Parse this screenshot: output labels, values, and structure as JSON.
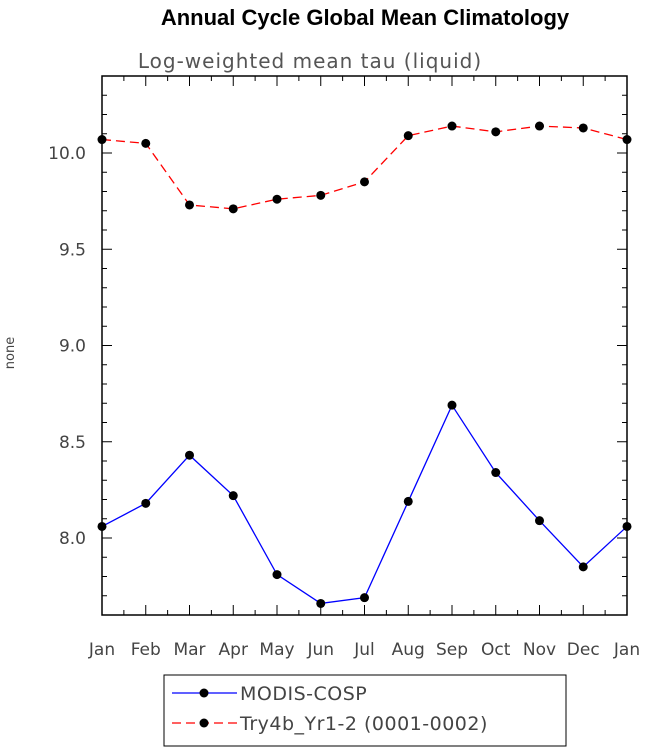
{
  "chart_data": {
    "type": "line",
    "title": "Annual Cycle Global Mean Climatology",
    "subtitle": "Log-weighted mean tau (liquid)",
    "xlabel": "",
    "ylabel": "none",
    "categories": [
      "Jan",
      "Feb",
      "Mar",
      "Apr",
      "May",
      "Jun",
      "Jul",
      "Aug",
      "Sep",
      "Oct",
      "Nov",
      "Dec",
      "Jan"
    ],
    "yticks": [
      "8.0",
      "8.5",
      "9.0",
      "9.5",
      "10.0"
    ],
    "ylim": [
      7.6,
      10.4
    ],
    "grid": false,
    "legend_position": "bottom",
    "series": [
      {
        "name": "MODIS-COSP",
        "color": "#0000ff",
        "dash": "solid",
        "values": [
          8.06,
          8.18,
          8.43,
          8.22,
          7.81,
          7.66,
          7.69,
          8.19,
          8.69,
          8.34,
          8.09,
          7.85,
          8.06
        ]
      },
      {
        "name": "Try4b_Yr1-2 (0001-0002)",
        "color": "#ff0000",
        "dash": "dashed",
        "values": [
          10.07,
          10.05,
          9.73,
          9.71,
          9.76,
          9.78,
          9.85,
          10.09,
          10.14,
          10.11,
          10.14,
          10.13,
          10.07
        ]
      }
    ]
  }
}
